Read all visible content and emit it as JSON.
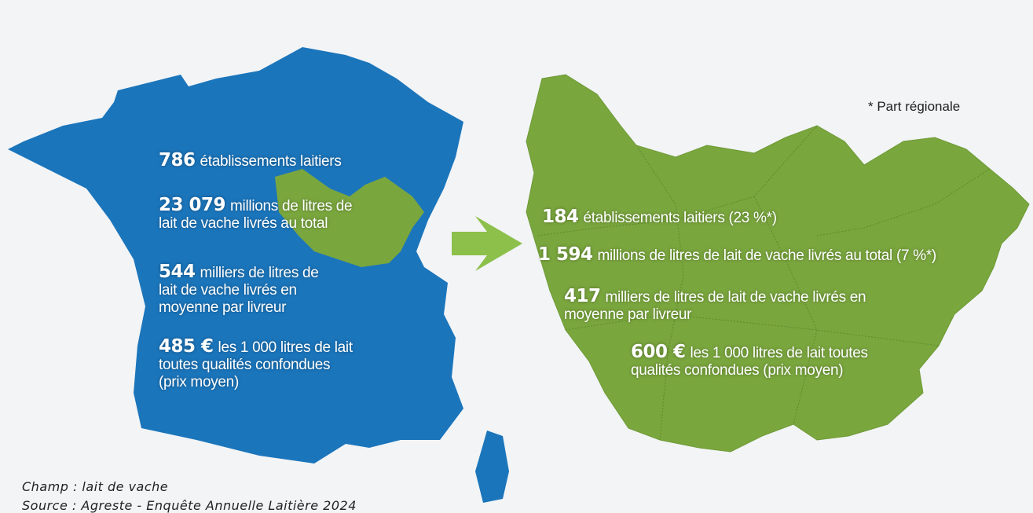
{
  "france": {
    "stats": [
      {
        "value": "786",
        "lines": [
          "établissements laitiers"
        ]
      },
      {
        "value": "23 079",
        "lines": [
          "millions de litres de",
          "lait de vache livrés au total"
        ]
      },
      {
        "value": "544",
        "lines": [
          "milliers de litres de",
          "lait de vache livrés en",
          "moyenne par livreur"
        ]
      },
      {
        "value": "485 €",
        "lines": [
          "les 1 000 litres de lait",
          "toutes qualités confondues",
          "(prix moyen)"
        ]
      }
    ]
  },
  "region": {
    "note": "* Part régionale",
    "stats": [
      {
        "value": "184",
        "lines": [
          "établissements laitiers (23 %*)"
        ]
      },
      {
        "value": "1 594",
        "lines": [
          "millions de litres de lait de vache livrés au total (7 %*)"
        ]
      },
      {
        "value": "417",
        "lines": [
          "milliers de litres de lait de vache livrés en",
          "moyenne par livreur"
        ]
      },
      {
        "value": "600 €",
        "lines": [
          "les 1 000 litres de lait toutes",
          "qualités confondues (prix moyen)"
        ]
      }
    ]
  },
  "footer": {
    "scope": "Champ : lait de vache",
    "source": "Source : Agreste - Enquête Annuelle Laitière 2024"
  }
}
